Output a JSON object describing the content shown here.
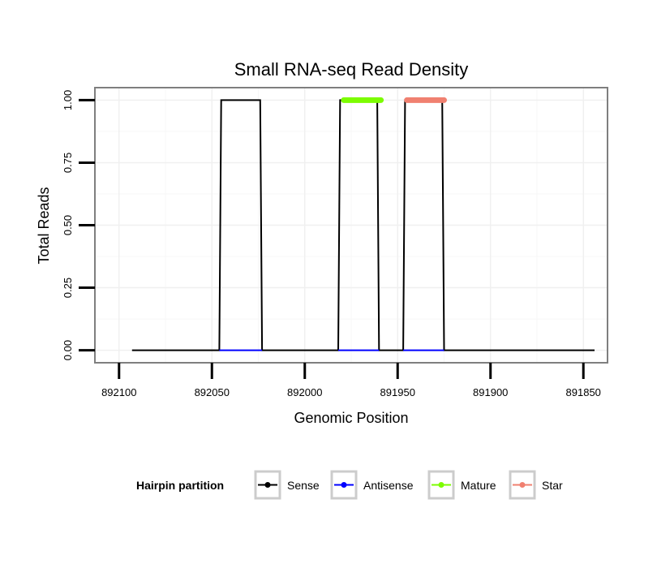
{
  "chart_data": {
    "type": "line",
    "title": "Small RNA-seq Read Density",
    "xlabel": "Genomic Position",
    "ylabel": "Total Reads",
    "x_reversed": true,
    "xlim": [
      892113,
      891837
    ],
    "ylim": [
      -0.05,
      1.05
    ],
    "x_ticks": [
      892100,
      892050,
      892000,
      891950,
      891900,
      891850
    ],
    "y_ticks": [
      0.0,
      0.25,
      0.5,
      0.75,
      1.0
    ],
    "y_tick_labels": [
      "0.00",
      "0.25",
      "0.50",
      "0.75",
      "1.00"
    ],
    "grid": true,
    "legend": {
      "title": "Hairpin partition",
      "position": "bottom",
      "entries": [
        "Sense",
        "Antisense",
        "Mature",
        "Star"
      ]
    },
    "series": [
      {
        "name": "Sense",
        "color": "#000000",
        "style": "line",
        "points": [
          [
            892093,
            0
          ],
          [
            892046,
            0
          ],
          [
            892045,
            1
          ],
          [
            892024,
            1
          ],
          [
            892023,
            0
          ],
          [
            891982,
            0
          ],
          [
            891981,
            1
          ],
          [
            891961,
            1
          ],
          [
            891960,
            0
          ],
          [
            891947,
            0
          ],
          [
            891946,
            1
          ],
          [
            891926,
            1
          ],
          [
            891925,
            0
          ],
          [
            891844,
            0
          ]
        ]
      },
      {
        "name": "Antisense",
        "color": "#0000ff",
        "style": "line",
        "segments": [
          [
            [
              892046,
              0
            ],
            [
              892023,
              0
            ]
          ],
          [
            [
              891982,
              0
            ],
            [
              891960,
              0
            ]
          ],
          [
            [
              891947,
              0
            ],
            [
              891925,
              0
            ]
          ]
        ]
      },
      {
        "name": "Mature",
        "color": "#7cfc00",
        "style": "thick",
        "segments": [
          [
            [
              891979,
              1
            ],
            [
              891959,
              1
            ]
          ]
        ]
      },
      {
        "name": "Star",
        "color": "#f08070",
        "style": "thick",
        "segments": [
          [
            [
              891945,
              1
            ],
            [
              891925,
              1
            ]
          ]
        ]
      }
    ]
  }
}
